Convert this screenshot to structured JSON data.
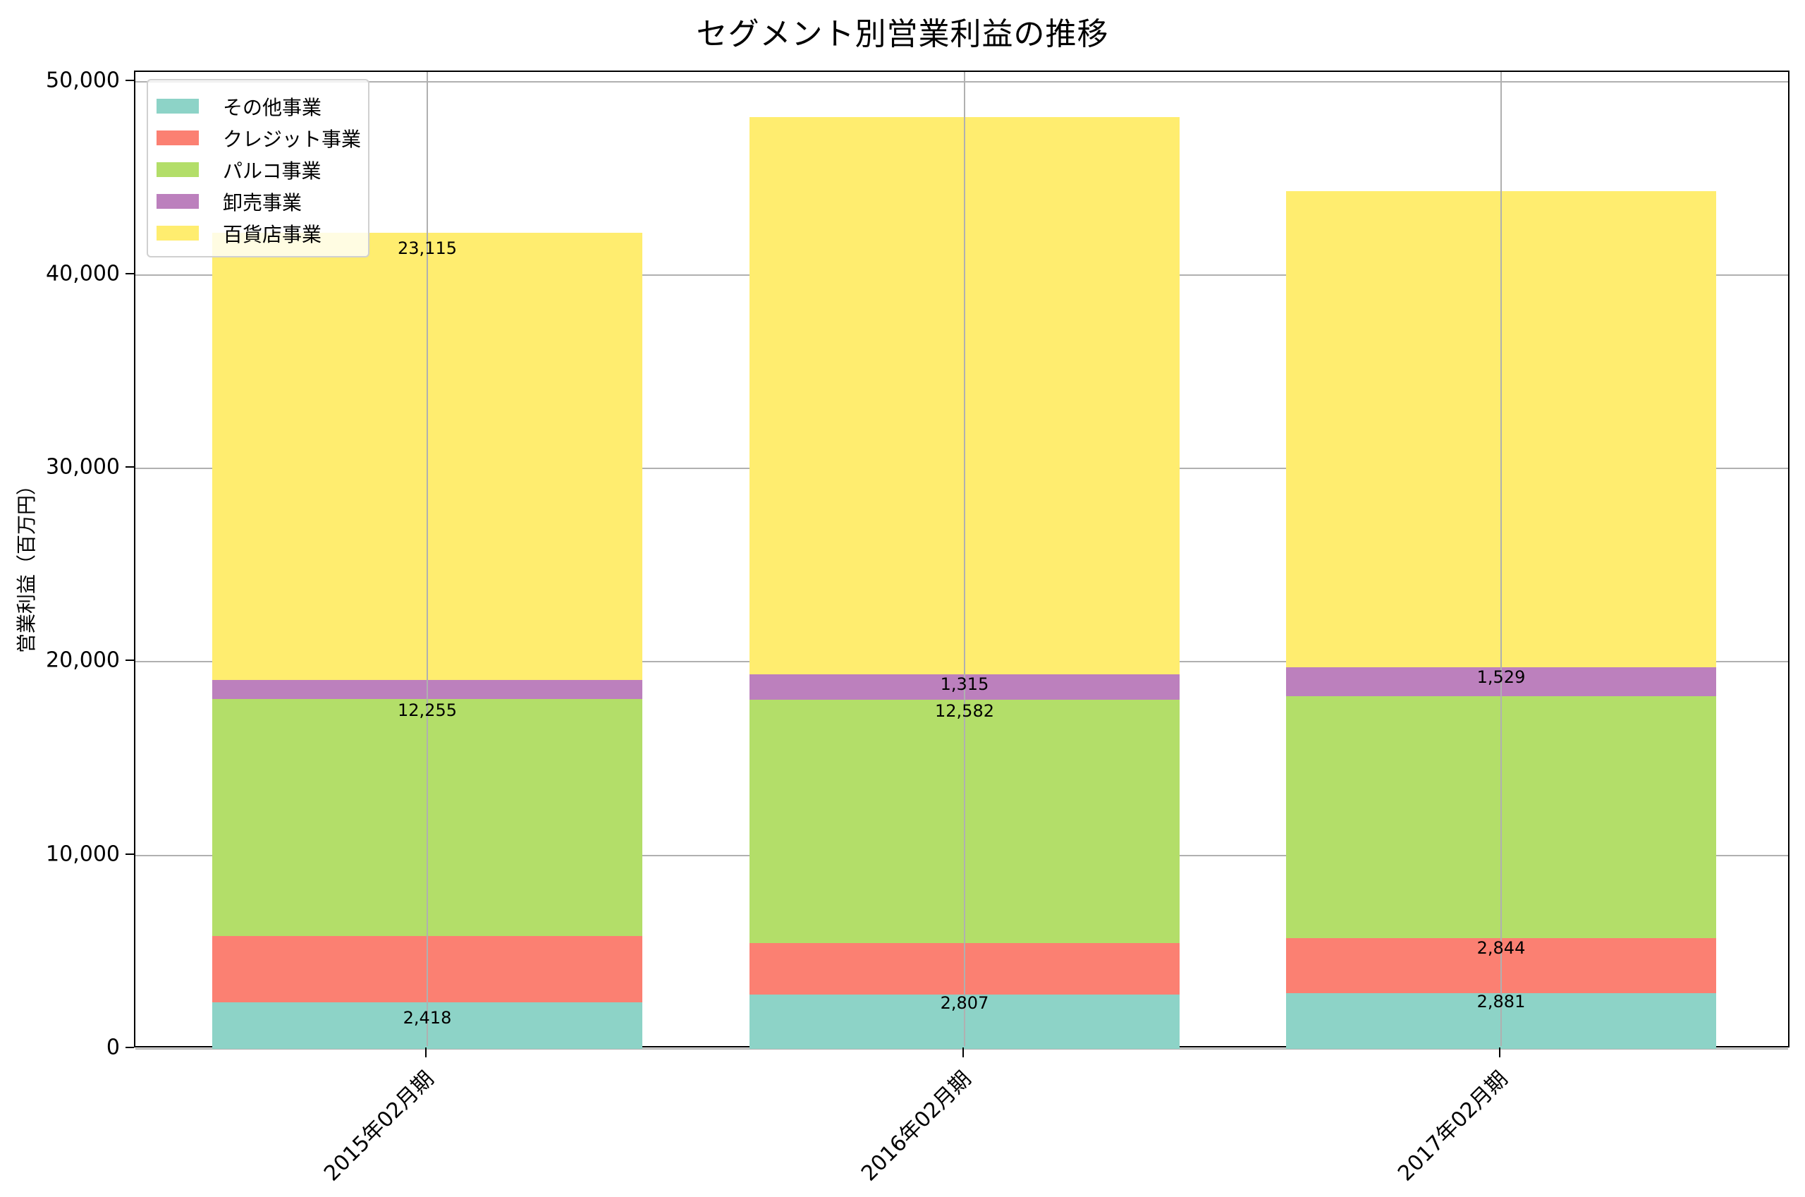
{
  "chart_data": {
    "type": "bar",
    "stacked": true,
    "title": "セグメント別営業利益の推移",
    "xlabel": "",
    "ylabel": "営業利益（百万円）",
    "ylim": [
      0,
      50500
    ],
    "yticks": [
      0,
      10000,
      20000,
      30000,
      40000,
      50000
    ],
    "ytick_labels": [
      "0",
      "10,000",
      "20,000",
      "30,000",
      "40,000",
      "50,000"
    ],
    "grid": true,
    "legend_position": "upper left",
    "categories": [
      "2015年02月期",
      "2016年02月期",
      "2017年02月期"
    ],
    "series": [
      {
        "name": "その他事業",
        "color": "#8dd3c7",
        "values": [
          2418,
          2807,
          2881
        ],
        "labels": [
          "2,418",
          "2,807",
          "2,881"
        ]
      },
      {
        "name": "クレジット事業",
        "color": "#fb8072",
        "values": [
          3412,
          2670,
          2844
        ],
        "labels": [
          "",
          "",
          "2,844"
        ]
      },
      {
        "name": "パルコ事業",
        "color": "#b3de69",
        "values": [
          12255,
          12582,
          12489
        ],
        "labels": [
          "12,255",
          "12,582",
          ""
        ]
      },
      {
        "name": "卸売事業",
        "color": "#bc80bd",
        "values": [
          1000,
          1315,
          1529
        ],
        "labels": [
          "",
          "1,315",
          "1,529"
        ]
      },
      {
        "name": "百貨店事業",
        "color": "#ffed6f",
        "values": [
          23115,
          28780,
          24600
        ],
        "labels": [
          "23,115",
          "",
          ""
        ]
      }
    ]
  }
}
